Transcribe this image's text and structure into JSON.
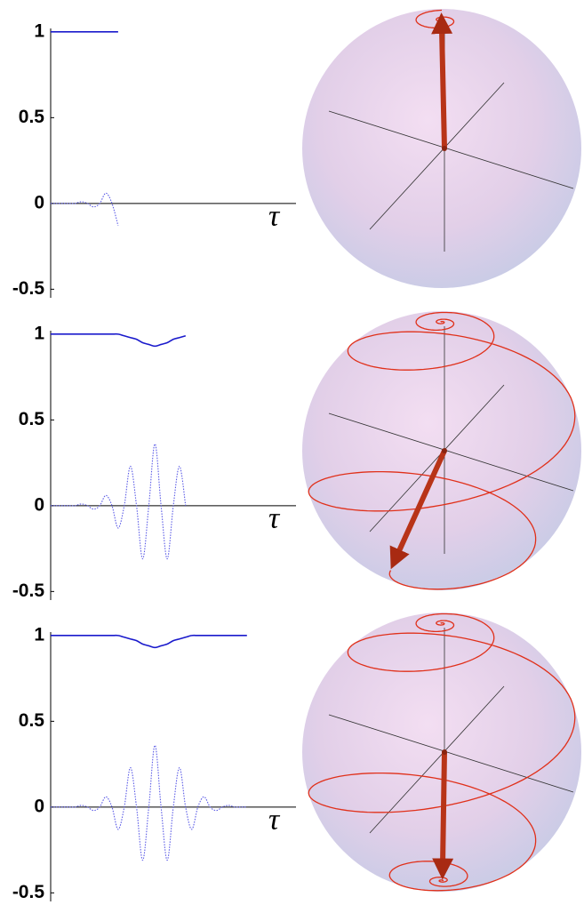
{
  "chart_data": [
    {
      "type": "line",
      "xlabel": "τ",
      "xlim": [
        0,
        10
      ],
      "ylim": [
        -0.55,
        1.02
      ],
      "yticks": [
        -0.5,
        0,
        0.5,
        1
      ],
      "grid": false,
      "x": [
        0,
        0.25,
        0.5,
        0.75,
        1,
        1.25,
        1.5,
        1.75,
        2,
        2.25,
        2.5,
        2.75
      ],
      "series": [
        {
          "color": "#1a1acc",
          "style": "solid",
          "values": [
            1,
            1,
            1,
            1,
            1,
            1,
            1,
            1,
            1,
            1,
            1,
            1
          ]
        },
        {
          "color": "#5a5ae6",
          "style": "dotted",
          "values": [
            0,
            0,
            0,
            0,
            0,
            0.01,
            0,
            -0.02,
            0,
            0.06,
            0,
            -0.13
          ]
        }
      ]
    },
    {
      "type": "line",
      "xlabel": "τ",
      "xlim": [
        0,
        10
      ],
      "ylim": [
        -0.55,
        1.02
      ],
      "yticks": [
        -0.5,
        0,
        0.5,
        1
      ],
      "grid": false,
      "x": [
        0,
        0.25,
        0.5,
        0.75,
        1,
        1.25,
        1.5,
        1.75,
        2,
        2.25,
        2.5,
        2.75,
        3,
        3.25,
        3.5,
        3.75,
        4,
        4.25,
        4.5,
        4.75,
        5,
        5.25,
        5.5
      ],
      "series": [
        {
          "color": "#1a1acc",
          "style": "solid",
          "values": [
            1,
            1,
            1,
            1,
            1,
            1,
            1,
            1,
            1,
            1,
            1,
            1,
            0.99,
            0.98,
            0.97,
            0.95,
            0.94,
            0.93,
            0.94,
            0.95,
            0.97,
            0.98,
            0.99
          ]
        },
        {
          "color": "#5a5ae6",
          "style": "dotted",
          "values": [
            0,
            0,
            0,
            0,
            0,
            0.01,
            0,
            -0.02,
            0,
            0.06,
            0,
            -0.13,
            0,
            0.23,
            0,
            -0.31,
            0,
            0.36,
            0,
            -0.31,
            0,
            0.23,
            0
          ]
        }
      ]
    },
    {
      "type": "line",
      "xlabel": "τ",
      "xlim": [
        0,
        10
      ],
      "ylim": [
        -0.55,
        1.02
      ],
      "yticks": [
        -0.5,
        0,
        0.5,
        1
      ],
      "grid": false,
      "x": [
        0,
        0.25,
        0.5,
        0.75,
        1,
        1.25,
        1.5,
        1.75,
        2,
        2.25,
        2.5,
        2.75,
        3,
        3.25,
        3.5,
        3.75,
        4,
        4.25,
        4.5,
        4.75,
        5,
        5.25,
        5.5,
        5.75,
        6,
        6.25,
        6.5,
        6.75,
        7,
        7.25,
        7.5,
        7.75,
        8
      ],
      "series": [
        {
          "color": "#1a1acc",
          "style": "solid",
          "values": [
            1,
            1,
            1,
            1,
            1,
            1,
            1,
            1,
            1,
            1,
            1,
            1,
            0.99,
            0.98,
            0.97,
            0.95,
            0.94,
            0.93,
            0.94,
            0.95,
            0.97,
            0.98,
            0.99,
            1,
            1,
            1,
            1,
            1,
            1,
            1,
            1,
            1,
            1
          ]
        },
        {
          "color": "#5a5ae6",
          "style": "dotted",
          "values": [
            0,
            0,
            0,
            0,
            0,
            0.01,
            0,
            -0.02,
            0,
            0.06,
            0,
            -0.13,
            0,
            0.23,
            0,
            -0.31,
            0,
            0.36,
            0,
            -0.31,
            0,
            0.23,
            0,
            -0.13,
            0,
            0.06,
            0,
            -0.02,
            0,
            0.01,
            0,
            0,
            0
          ]
        }
      ]
    }
  ]
}
